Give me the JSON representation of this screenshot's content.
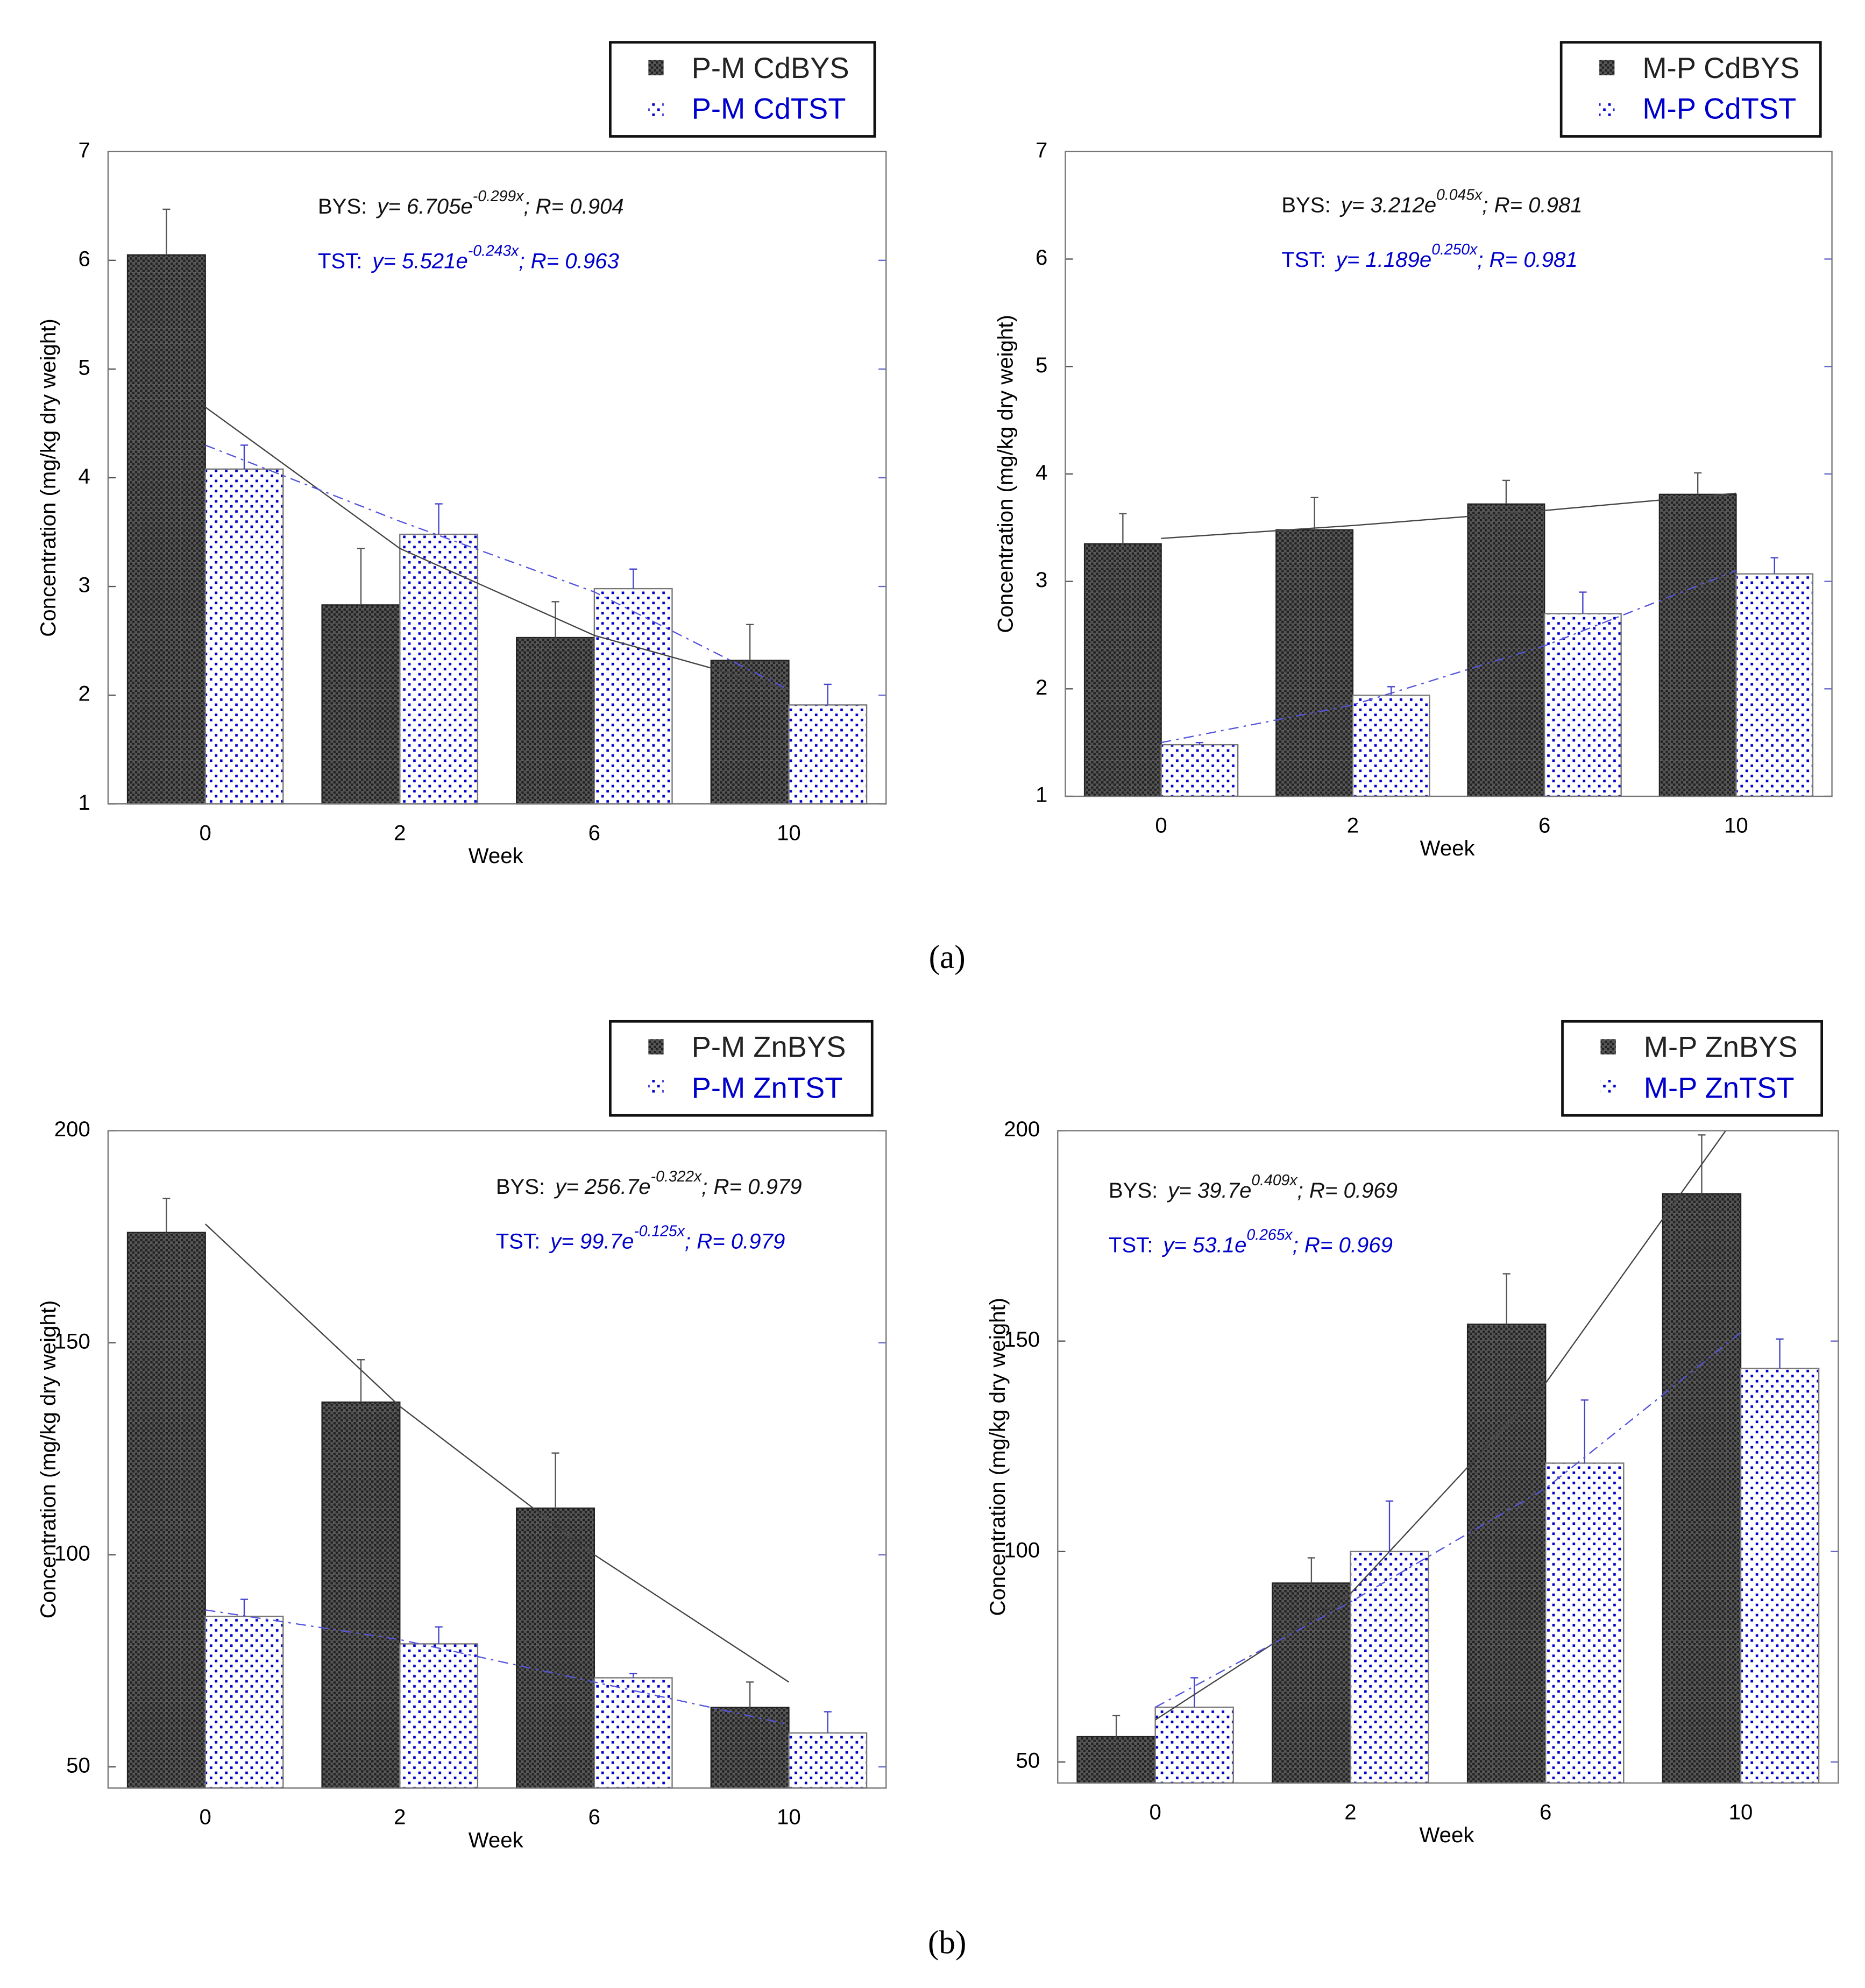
{
  "chart_data": [
    {
      "type": "bar",
      "categories": [
        "0",
        "2",
        "6",
        "10"
      ],
      "xlabel": "Week",
      "ylabel": "Concentration (mg/kg dry weight)",
      "ylim": [
        1,
        7
      ],
      "yticks": [
        1,
        2,
        3,
        4,
        5,
        6,
        7
      ],
      "series": [
        {
          "name": "P-M CdBYS",
          "color": "#222222",
          "pattern": "checker",
          "line_style": "solid",
          "values": [
            6.05,
            2.83,
            2.53,
            2.32
          ],
          "errors": [
            0.42,
            0.52,
            0.33,
            0.33
          ],
          "trend": [
            4.65,
            3.35,
            2.55,
            2.05
          ]
        },
        {
          "name": "P-M CdTST",
          "color": "#0000cc",
          "pattern": "dots",
          "line_style": "dashed",
          "values": [
            4.08,
            3.48,
            2.98,
            1.91
          ],
          "errors": [
            0.22,
            0.28,
            0.18,
            0.19
          ],
          "trend": [
            4.3,
            3.6,
            2.95,
            2.05
          ]
        }
      ],
      "annotations": [
        {
          "label": "BYS:",
          "text": "y= 6.705e",
          "sup": "-0.299x",
          "tail": "; R= 0.904",
          "color": "#111111"
        },
        {
          "label": "TST:",
          "text": "y= 5.521e",
          "sup": "-0.243x",
          "tail": "; R= 0.963",
          "color": "#0000cc"
        }
      ]
    },
    {
      "type": "bar",
      "categories": [
        "0",
        "2",
        "6",
        "10"
      ],
      "xlabel": "Week",
      "ylabel": "Concentration (mg/kg dry weight)",
      "ylim": [
        1,
        7
      ],
      "yticks": [
        1,
        2,
        3,
        4,
        5,
        6,
        7
      ],
      "series": [
        {
          "name": "M-P CdBYS",
          "color": "#222222",
          "pattern": "checker",
          "line_style": "solid",
          "values": [
            3.35,
            3.48,
            3.72,
            3.81
          ],
          "errors": [
            0.28,
            0.3,
            0.22,
            0.2
          ],
          "trend": [
            3.4,
            3.52,
            3.66,
            3.82
          ]
        },
        {
          "name": "M-P CdTST",
          "color": "#0000cc",
          "pattern": "dots",
          "line_style": "dashed",
          "values": [
            1.48,
            1.94,
            2.7,
            3.07
          ],
          "errors": [
            0.02,
            0.08,
            0.2,
            0.15
          ],
          "trend": [
            1.5,
            1.85,
            2.4,
            3.1
          ]
        }
      ],
      "annotations": [
        {
          "label": "BYS:",
          "text": "y= 3.212e",
          "sup": "0.045x",
          "tail": "; R= 0.981",
          "color": "#111111"
        },
        {
          "label": "TST:",
          "text": "y= 1.189e",
          "sup": "0.250x",
          "tail": "; R= 0.981",
          "color": "#0000cc"
        }
      ]
    },
    {
      "type": "bar",
      "categories": [
        "0",
        "2",
        "6",
        "10"
      ],
      "xlabel": "Week",
      "ylabel": "Concentration (mg/kg dry weight)",
      "ylim": [
        45,
        200
      ],
      "yticks": [
        50,
        100,
        150,
        200
      ],
      "series": [
        {
          "name": "P-M ZnBYS",
          "color": "#222222",
          "pattern": "checker",
          "line_style": "solid",
          "values": [
            176,
            136,
            111,
            64
          ],
          "errors": [
            8,
            10,
            13,
            6
          ],
          "trend": [
            178,
            135,
            100,
            70
          ]
        },
        {
          "name": "P-M ZnTST",
          "color": "#0000cc",
          "pattern": "dots",
          "line_style": "dashed",
          "values": [
            85.5,
            79,
            71,
            58
          ],
          "errors": [
            4,
            4,
            1,
            5
          ],
          "trend": [
            87,
            80,
            70,
            60
          ]
        }
      ],
      "annotations": [
        {
          "label": "BYS:",
          "text": "y= 256.7e",
          "sup": "-0.322x",
          "tail": "; R= 0.979",
          "color": "#111111"
        },
        {
          "label": "TST:",
          "text": "y= 99.7e",
          "sup": "-0.125x",
          "tail": "; R= 0.979",
          "color": "#0000cc"
        }
      ]
    },
    {
      "type": "bar",
      "categories": [
        "0",
        "2",
        "6",
        "10"
      ],
      "xlabel": "Week",
      "ylabel": "Concentration (mg/kg dry weight)",
      "ylim": [
        45,
        200
      ],
      "yticks": [
        50,
        100,
        150,
        200
      ],
      "series": [
        {
          "name": "M-P ZnBYS",
          "color": "#222222",
          "pattern": "checker",
          "line_style": "solid",
          "values": [
            56,
            92.5,
            154,
            185
          ],
          "errors": [
            5,
            6,
            12,
            14
          ],
          "trend": [
            60,
            90,
            140,
            205
          ]
        },
        {
          "name": "M-P ZnTST",
          "color": "#0000cc",
          "pattern": "dots",
          "line_style": "dashed",
          "values": [
            63,
            100,
            121,
            143.5
          ],
          "errors": [
            7,
            12,
            15,
            7
          ],
          "trend": [
            63,
            88,
            115,
            152
          ]
        }
      ],
      "annotations": [
        {
          "label": "BYS:",
          "text": "y= 39.7e",
          "sup": "0.409x",
          "tail": "; R= 0.969",
          "color": "#111111"
        },
        {
          "label": "TST:",
          "text": "y= 53.1e",
          "sup": "0.265x",
          "tail": "; R= 0.969",
          "color": "#0000cc"
        }
      ]
    }
  ],
  "panel_labels": [
    "(a)",
    "(b)"
  ]
}
